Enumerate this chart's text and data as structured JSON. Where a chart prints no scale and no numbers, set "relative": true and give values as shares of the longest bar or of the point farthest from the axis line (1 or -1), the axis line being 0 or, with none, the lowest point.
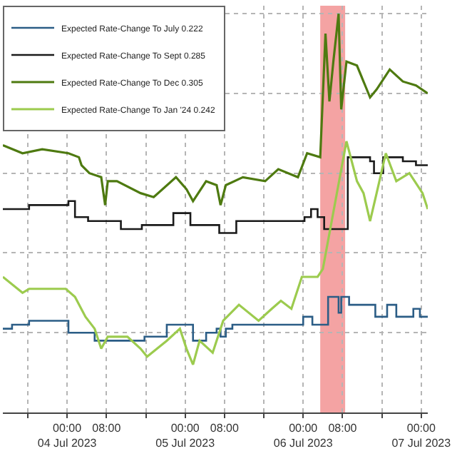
{
  "chart_data": {
    "type": "line",
    "relative": true,
    "legend": "top left",
    "grid": true,
    "xlim": [
      "2023-07-03T10:56",
      "2023-07-07T01:20"
    ],
    "xticks": [
      {
        "value": "2023-07-03T16:00",
        "label": null
      },
      {
        "value": "2023-07-04T00:00",
        "label": "00:00\n04 Jul 2023"
      },
      {
        "value": "2023-07-04T08:00",
        "label": "08:00"
      },
      {
        "value": "2023-07-04T16:00",
        "label": null
      },
      {
        "value": "2023-07-05T00:00",
        "label": "00:00\n05 Jul 2023"
      },
      {
        "value": "2023-07-05T08:00",
        "label": "08:00"
      },
      {
        "value": "2023-07-05T16:00",
        "label": null
      },
      {
        "value": "2023-07-06T00:00",
        "label": "00:00\n06 Jul 2023"
      },
      {
        "value": "2023-07-06T08:00",
        "label": "08:00"
      },
      {
        "value": "2023-07-06T16:00",
        "label": null
      },
      {
        "value": "2023-07-07T00:00",
        "label": "00:00\n07 Jul 2023"
      }
    ],
    "bands": [
      {
        "axis": "x",
        "from": "2023-07-06T03:28",
        "to": "2023-07-06T08:32",
        "color": "#f4a3a3"
      }
    ],
    "series": [
      {
        "name": "Expected Rate-Change To July 0.222",
        "color": "#2b5d86",
        "type": "step",
        "x": [
          "2023-07-03T10:56",
          "2023-07-03T12:48",
          "2023-07-03T16:16",
          "2023-07-03T23:44",
          "2023-07-04T00:16",
          "2023-07-04T05:04",
          "2023-07-04T05:36",
          "2023-07-04T15:44",
          "2023-07-04T20:16",
          "2023-07-05T00:16",
          "2023-07-05T01:36",
          "2023-07-05T04:16",
          "2023-07-05T06:24",
          "2023-07-05T07:12",
          "2023-07-05T08:16",
          "2023-07-05T09:36",
          "2023-07-05T23:44",
          "2023-07-06T00:00",
          "2023-07-06T01:52",
          "2023-07-06T05:04",
          "2023-07-06T07:12",
          "2023-07-06T07:44",
          "2023-07-06T09:20",
          "2023-07-06T14:40",
          "2023-07-06T17:04",
          "2023-07-06T18:56",
          "2023-07-06T22:24",
          "2023-07-06T23:44",
          "2023-07-07T01:20"
        ],
        "values": [
          0.21,
          0.22,
          0.23,
          0.23,
          0.2,
          0.2,
          0.18,
          0.19,
          0.22,
          0.22,
          0.18,
          0.2,
          0.21,
          0.19,
          0.21,
          0.22,
          0.22,
          0.24,
          0.22,
          0.29,
          0.25,
          0.29,
          0.27,
          0.24,
          0.27,
          0.24,
          0.26,
          0.24,
          0.24
        ]
      },
      {
        "name": "Expected Rate-Change To Sept 0.285",
        "color": "#1a1a1a",
        "type": "step",
        "x": [
          "2023-07-03T10:56",
          "2023-07-03T16:16",
          "2023-07-03T17:36",
          "2023-07-03T23:44",
          "2023-07-04T00:16",
          "2023-07-04T01:36",
          "2023-07-04T04:16",
          "2023-07-04T08:16",
          "2023-07-04T10:56",
          "2023-07-04T15:12",
          "2023-07-04T21:36",
          "2023-07-05T00:48",
          "2023-07-05T01:04",
          "2023-07-05T06:56",
          "2023-07-05T10:24",
          "2023-07-06T00:16",
          "2023-07-06T01:36",
          "2023-07-06T02:56",
          "2023-07-06T04:16",
          "2023-07-06T09:04",
          "2023-07-06T13:36",
          "2023-07-06T14:24",
          "2023-07-06T16:16",
          "2023-07-06T20:16",
          "2023-07-06T22:56",
          "2023-07-07T01:20"
        ],
        "values": [
          0.51,
          0.52,
          0.52,
          0.52,
          0.53,
          0.49,
          0.48,
          0.48,
          0.46,
          0.47,
          0.5,
          0.5,
          0.47,
          0.45,
          0.48,
          0.49,
          0.51,
          0.49,
          0.46,
          0.64,
          0.63,
          0.6,
          0.64,
          0.63,
          0.62,
          0.62
        ]
      },
      {
        "name": "Expected Rate-Change To Dec 0.305",
        "color": "#4e7a10",
        "x": [
          "2023-07-03T10:56",
          "2023-07-03T14:56",
          "2023-07-03T18:56",
          "2023-07-04T00:16",
          "2023-07-04T02:24",
          "2023-07-04T02:56",
          "2023-07-04T04:32",
          "2023-07-04T06:56",
          "2023-07-04T07:44",
          "2023-07-04T08:16",
          "2023-07-04T10:08",
          "2023-07-04T14:56",
          "2023-07-04T17:36",
          "2023-07-04T22:08",
          "2023-07-05T00:16",
          "2023-07-05T01:36",
          "2023-07-05T04:16",
          "2023-07-05T06:24",
          "2023-07-05T07:12",
          "2023-07-05T08:16",
          "2023-07-05T11:44",
          "2023-07-05T16:16",
          "2023-07-05T18:56",
          "2023-07-05T22:56",
          "2023-07-06T00:48",
          "2023-07-06T03:28",
          "2023-07-06T04:32",
          "2023-07-06T05:20",
          "2023-07-06T06:08",
          "2023-07-06T07:12",
          "2023-07-06T07:44",
          "2023-07-06T08:48",
          "2023-07-06T10:56",
          "2023-07-06T13:36",
          "2023-07-06T14:56",
          "2023-07-06T17:36",
          "2023-07-06T20:16",
          "2023-07-06T22:56",
          "2023-07-07T01:20"
        ],
        "values": [
          0.67,
          0.65,
          0.66,
          0.65,
          0.64,
          0.62,
          0.6,
          0.59,
          0.52,
          0.58,
          0.58,
          0.55,
          0.54,
          0.59,
          0.56,
          0.53,
          0.58,
          0.57,
          0.52,
          0.57,
          0.59,
          0.58,
          0.61,
          0.59,
          0.65,
          0.64,
          0.95,
          0.78,
          0.88,
          1.0,
          0.76,
          0.88,
          0.87,
          0.79,
          0.81,
          0.86,
          0.83,
          0.82,
          0.8
        ]
      },
      {
        "name": "Expected Rate-Change To Jan '24 0.242",
        "color": "#9ccb4e",
        "x": [
          "2023-07-03T10:56",
          "2023-07-03T14:56",
          "2023-07-03T16:16",
          "2023-07-03T18:56",
          "2023-07-03T23:44",
          "2023-07-04T01:36",
          "2023-07-04T03:44",
          "2023-07-04T05:36",
          "2023-07-04T06:56",
          "2023-07-04T08:16",
          "2023-07-04T12:16",
          "2023-07-04T14:56",
          "2023-07-04T16:16",
          "2023-07-04T20:16",
          "2023-07-04T22:56",
          "2023-07-05T00:16",
          "2023-07-05T01:36",
          "2023-07-05T02:56",
          "2023-07-05T05:36",
          "2023-07-05T07:44",
          "2023-07-05T10:56",
          "2023-07-05T14:56",
          "2023-07-05T17:36",
          "2023-07-05T19:28",
          "2023-07-05T21:36",
          "2023-07-05T23:44",
          "2023-07-06T02:56",
          "2023-07-06T04:00",
          "2023-07-06T08:48",
          "2023-07-06T10:56",
          "2023-07-06T12:16",
          "2023-07-06T13:36",
          "2023-07-06T14:56",
          "2023-07-06T16:48",
          "2023-07-06T18:56",
          "2023-07-06T21:36",
          "2023-07-07T00:16",
          "2023-07-07T01:20"
        ],
        "values": [
          0.34,
          0.3,
          0.31,
          0.31,
          0.31,
          0.29,
          0.24,
          0.21,
          0.16,
          0.19,
          0.19,
          0.16,
          0.14,
          0.18,
          0.21,
          0.16,
          0.12,
          0.18,
          0.15,
          0.23,
          0.27,
          0.23,
          0.26,
          0.28,
          0.26,
          0.34,
          0.34,
          0.36,
          0.68,
          0.58,
          0.55,
          0.48,
          0.55,
          0.65,
          0.58,
          0.6,
          0.55,
          0.51
        ]
      }
    ]
  }
}
